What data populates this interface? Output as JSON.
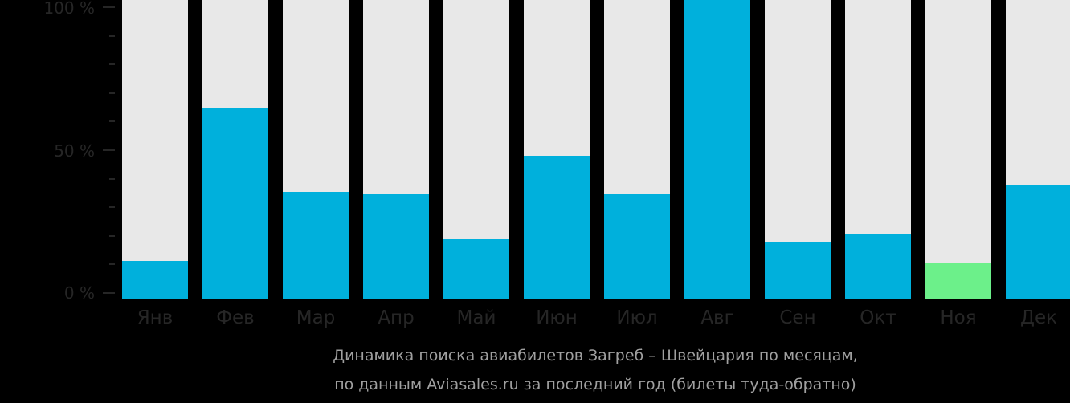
{
  "chart_data": {
    "type": "bar",
    "title": "Динамика поиска авиабилетов Загреб – Швейцария по месяцам, по данным Aviasales.ru за последний год (билеты туда-обратно)",
    "xlabel": "",
    "ylabel": "",
    "categories": [
      "Янв",
      "Фев",
      "Мар",
      "Апр",
      "Май",
      "Июн",
      "Июл",
      "Авг",
      "Сен",
      "Окт",
      "Ноя",
      "Дек"
    ],
    "values": [
      13,
      64,
      36,
      35,
      20,
      48,
      35,
      100,
      19,
      22,
      12,
      38
    ],
    "highlight_index": 10,
    "ylim": [
      0,
      100
    ],
    "yticks": [
      "0 %",
      "50 %",
      "100 %"
    ],
    "minor_tick_step": 10,
    "grid": false,
    "legend": null
  },
  "axis": {
    "y_labels": [
      "100 %",
      "50 %",
      "0 %"
    ]
  },
  "months": [
    "Янв",
    "Фев",
    "Мар",
    "Апр",
    "Май",
    "Июн",
    "Июл",
    "Авг",
    "Сен",
    "Окт",
    "Ноя",
    "Дек"
  ],
  "caption": {
    "line1": "Динамика поиска авиабилетов Загреб – Швейцария по месяцам,",
    "line2": "по данным Aviasales.ru за последний год (билеты туда-обратно)"
  },
  "colors": {
    "background": "#000000",
    "bar_track": "#e8e8e8",
    "bar_fill": "#00b0dc",
    "bar_highlight": "#6cf08a",
    "axis_text": "#262626",
    "caption_text": "#a0a0a0"
  }
}
